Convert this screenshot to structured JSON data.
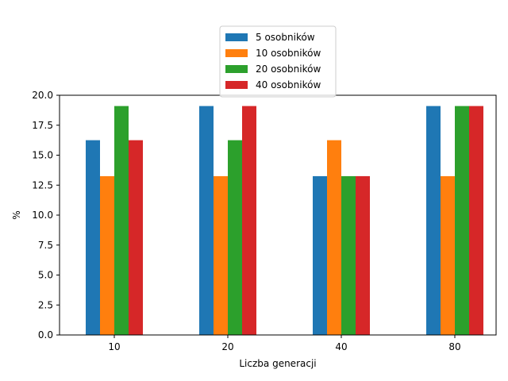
{
  "chart_data": {
    "type": "bar",
    "categories": [
      "10",
      "20",
      "40",
      "80"
    ],
    "series": [
      {
        "name": "5 osobników",
        "color": "#1f77b4",
        "values": [
          16.25,
          19.1,
          13.25,
          19.1
        ]
      },
      {
        "name": "10 osobników",
        "color": "#ff7f0e",
        "values": [
          13.25,
          13.25,
          16.25,
          13.25
        ]
      },
      {
        "name": "20 osobników",
        "color": "#2ca02c",
        "values": [
          19.1,
          16.25,
          13.25,
          19.1
        ]
      },
      {
        "name": "40 osobników",
        "color": "#d62728",
        "values": [
          16.25,
          19.1,
          13.25,
          19.1
        ]
      }
    ],
    "xlabel": "Liczba generacji",
    "ylabel": "%",
    "ylim": [
      0,
      20
    ],
    "yticks": [
      "0.0",
      "2.5",
      "5.0",
      "7.5",
      "10.0",
      "12.5",
      "15.0",
      "17.5",
      "20.0"
    ],
    "grid": false,
    "legend_position": "top-center"
  }
}
